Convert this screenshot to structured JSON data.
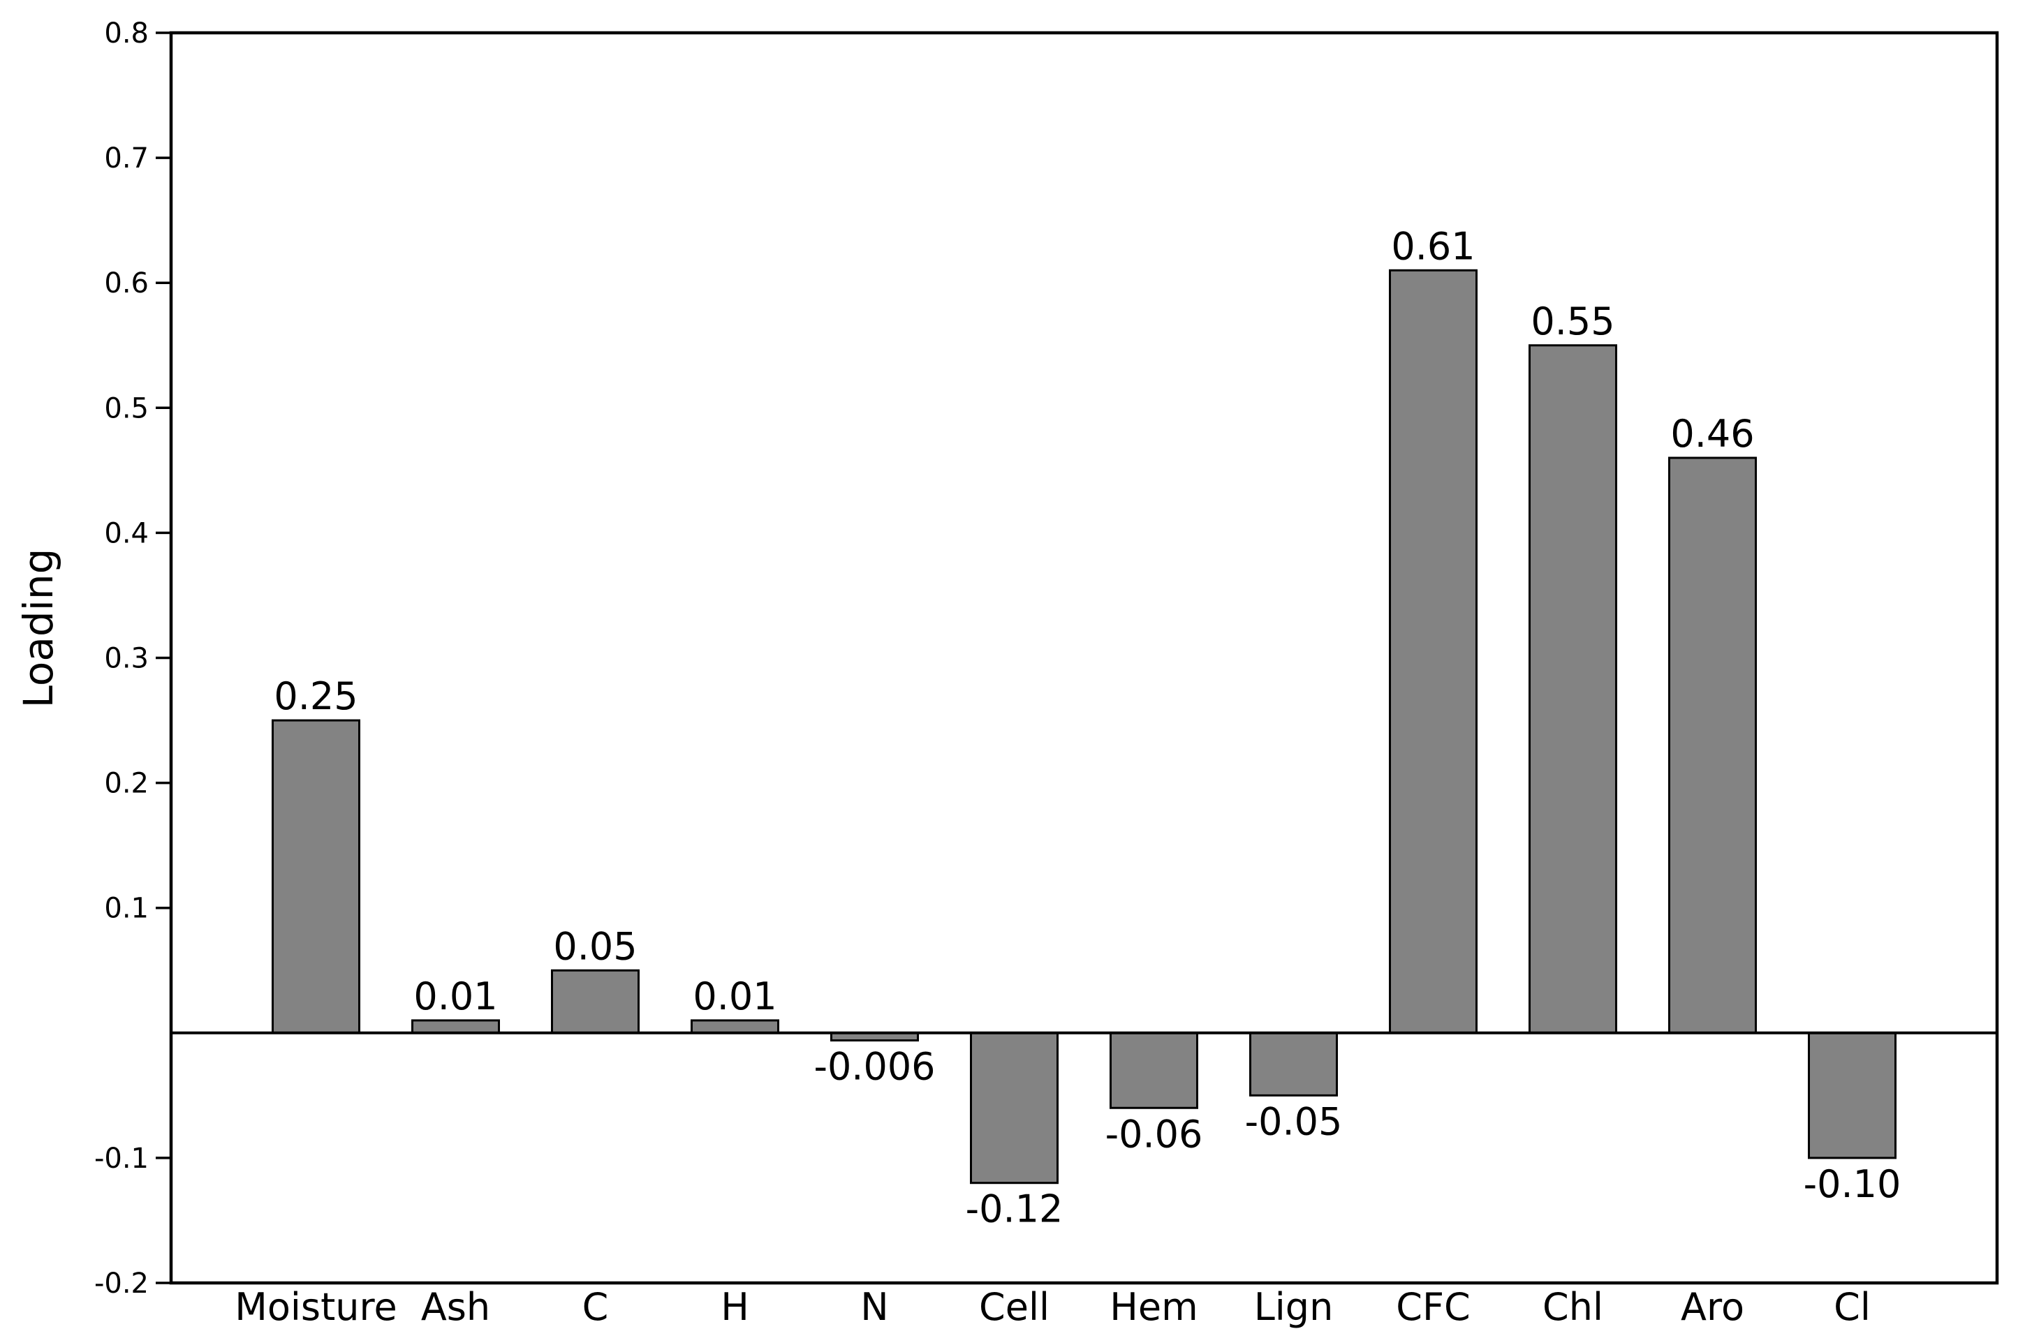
{
  "chart_data": {
    "type": "bar",
    "title": "",
    "xlabel": "",
    "ylabel": "Loading",
    "categories": [
      "Moisture",
      "Ash",
      "C",
      "H",
      "N",
      "Cell",
      "Hem",
      "Lign",
      "CFC",
      "Chl",
      "Aro",
      "Cl"
    ],
    "values": [
      0.25,
      0.01,
      0.05,
      0.01,
      -0.006,
      -0.12,
      -0.06,
      -0.05,
      0.61,
      0.55,
      0.46,
      -0.1
    ],
    "bar_labels": [
      "0.25",
      "0.01",
      "0.05",
      "0.01",
      "-0.006",
      "-0.12",
      "-0.06",
      "-0.05",
      "0.61",
      "0.55",
      "0.46",
      "-0.10"
    ],
    "ylim": [
      -0.2,
      0.8
    ],
    "yticks": [
      {
        "value": 0.8,
        "label": "0.8"
      },
      {
        "value": 0.7,
        "label": "0.7"
      },
      {
        "value": 0.6,
        "label": "0.6"
      },
      {
        "value": 0.5,
        "label": "0.5"
      },
      {
        "value": 0.4,
        "label": "0.4"
      },
      {
        "value": 0.3,
        "label": "0.3"
      },
      {
        "value": 0.2,
        "label": "0.2"
      },
      {
        "value": 0.1,
        "label": "0.1"
      },
      {
        "value": -0.1,
        "label": "-0.1"
      },
      {
        "value": -0.2,
        "label": "-0.2"
      }
    ],
    "grid": false,
    "legend": null,
    "zero_line": true,
    "bar_color": "#838383",
    "bar_edge_color": "#000000",
    "axis_color": "#000000",
    "text_color": "#000000",
    "background_color": "#ffffff"
  }
}
